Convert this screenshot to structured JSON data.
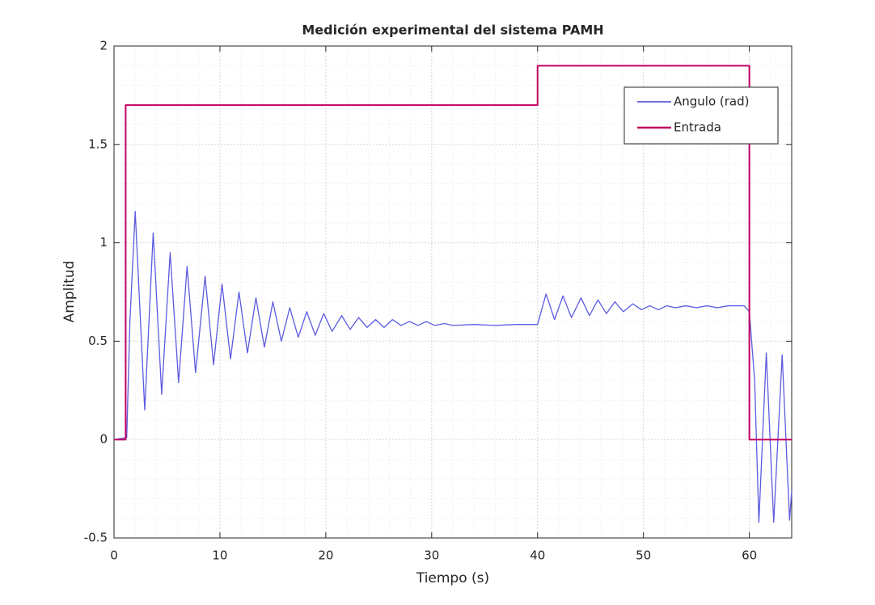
{
  "chart_data": {
    "type": "line",
    "title": "Medición experimental del sistema PAMH",
    "x_label": "Tiempo (s)",
    "y_label": "Amplitud",
    "xlim": [
      0,
      64
    ],
    "ylim": [
      -0.5,
      2
    ],
    "xticks": [
      0,
      10,
      20,
      30,
      40,
      50,
      60
    ],
    "yticks": [
      -0.5,
      0,
      0.5,
      1,
      1.5,
      2
    ],
    "grid": true,
    "minor_grid": true,
    "legend": "northeast",
    "series": [
      {
        "name": "Angulo (rad)",
        "color": "#5b5be0",
        "width": 1.3,
        "x": [
          0,
          1.2,
          1.5,
          2.0,
          2.9,
          3.7,
          4.5,
          5.3,
          6.1,
          6.9,
          7.7,
          8.6,
          9.4,
          10.2,
          11.0,
          11.8,
          12.6,
          13.4,
          14.2,
          15.0,
          15.8,
          16.6,
          17.4,
          18.2,
          19.0,
          19.8,
          20.6,
          21.5,
          22.3,
          23.1,
          23.9,
          24.7,
          25.5,
          26.3,
          27.1,
          27.9,
          28.7,
          29.5,
          30.3,
          31.2,
          32.0,
          34.0,
          36.0,
          38.0,
          40.0,
          40.8,
          41.6,
          42.4,
          43.2,
          44.1,
          44.9,
          45.7,
          46.5,
          47.3,
          48.1,
          49.0,
          49.8,
          50.6,
          51.4,
          52.2,
          53.0,
          54.0,
          55.0,
          56.0,
          57.0,
          58.0,
          59.5,
          60.0,
          60.5,
          60.9,
          61.6,
          62.3,
          63.1,
          63.8,
          64.0
        ],
        "values": [
          0,
          0.01,
          0.6,
          1.16,
          0.15,
          1.05,
          0.23,
          0.95,
          0.29,
          0.88,
          0.34,
          0.83,
          0.38,
          0.79,
          0.41,
          0.75,
          0.44,
          0.72,
          0.47,
          0.7,
          0.5,
          0.67,
          0.52,
          0.65,
          0.53,
          0.64,
          0.55,
          0.63,
          0.56,
          0.62,
          0.57,
          0.61,
          0.57,
          0.61,
          0.58,
          0.6,
          0.58,
          0.6,
          0.58,
          0.59,
          0.58,
          0.585,
          0.58,
          0.585,
          0.585,
          0.74,
          0.61,
          0.73,
          0.62,
          0.72,
          0.63,
          0.71,
          0.64,
          0.7,
          0.65,
          0.69,
          0.66,
          0.68,
          0.66,
          0.68,
          0.67,
          0.68,
          0.67,
          0.68,
          0.67,
          0.68,
          0.68,
          0.65,
          0.3,
          -0.42,
          0.44,
          -0.42,
          0.43,
          -0.41,
          -0.26
        ]
      },
      {
        "name": "Entrada",
        "color": "#c0005f",
        "width": 2,
        "x": [
          0,
          1.1,
          1.1,
          40,
          40,
          60,
          60,
          64
        ],
        "values": [
          0,
          0,
          1.7,
          1.7,
          1.9,
          1.9,
          0,
          0
        ]
      }
    ]
  }
}
